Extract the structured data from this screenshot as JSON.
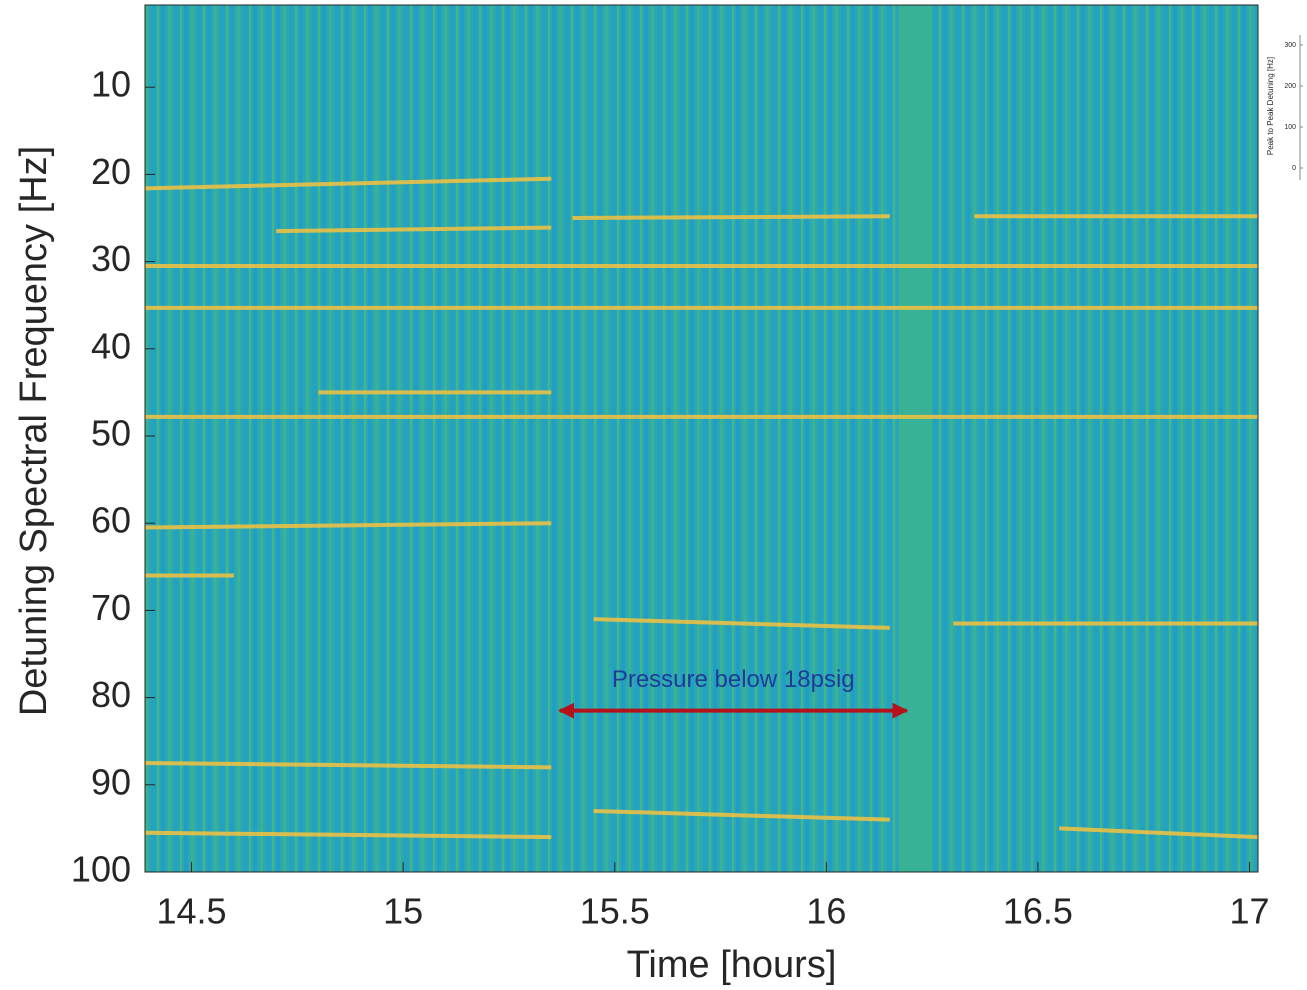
{
  "chart_data": [
    {
      "type": "heatmap",
      "xlabel": "Time [hours]",
      "ylabel": "Detuning Spectral Frequency [Hz]",
      "xlim": [
        14.39,
        17.02
      ],
      "ylim": [
        0,
        100
      ],
      "y_inverted": true,
      "xticks": [
        14.5,
        15,
        15.5,
        16,
        16.5,
        17
      ],
      "yticks": [
        10,
        20,
        30,
        40,
        50,
        60,
        70,
        80,
        90,
        100
      ],
      "colors": {
        "low": "#1f9fc6",
        "mid": "#3ab294",
        "high": "#f6c23e"
      },
      "features": [
        {
          "x": [
            14.39,
            15.35
          ],
          "y": [
            21.6,
            20.5
          ]
        },
        {
          "x": [
            14.7,
            15.35
          ],
          "y": [
            26.5,
            26.1
          ]
        },
        {
          "x": [
            15.4,
            16.15
          ],
          "y": [
            25,
            24.8
          ]
        },
        {
          "x": [
            16.35,
            17.02
          ],
          "y": [
            24.8,
            24.8
          ]
        },
        {
          "x": [
            14.39,
            17.02
          ],
          "y": [
            30.5,
            30.5
          ]
        },
        {
          "x": [
            14.39,
            17.02
          ],
          "y": [
            35.3,
            35.3
          ]
        },
        {
          "x": [
            14.39,
            17.02
          ],
          "y": [
            47.8,
            47.8
          ]
        },
        {
          "x": [
            14.8,
            15.35
          ],
          "y": [
            45,
            45
          ]
        },
        {
          "x": [
            14.39,
            15.35
          ],
          "y": [
            60.5,
            60
          ]
        },
        {
          "x": [
            14.39,
            14.6
          ],
          "y": [
            66,
            66
          ]
        },
        {
          "x": [
            15.45,
            16.15
          ],
          "y": [
            71,
            72
          ]
        },
        {
          "x": [
            16.3,
            17.02
          ],
          "y": [
            71.5,
            71.5
          ]
        },
        {
          "x": [
            14.39,
            15.35
          ],
          "y": [
            87.5,
            88
          ]
        },
        {
          "x": [
            15.45,
            16.15
          ],
          "y": [
            93,
            94
          ]
        },
        {
          "x": [
            14.39,
            15.35
          ],
          "y": [
            95.5,
            96
          ]
        },
        {
          "x": [
            16.55,
            17.02
          ],
          "y": [
            95,
            96
          ]
        }
      ],
      "bands": [
        {
          "x": [
            16.17,
            16.25
          ]
        }
      ],
      "annotations": [
        {
          "text": "Pressure below 18psig",
          "x": [
            15.37,
            16.19
          ],
          "y": 81.5,
          "color": "#b5121b",
          "text_color": "#1f3b9a"
        }
      ]
    },
    {
      "type": "inset",
      "ylabel": "Peak to Peak Detuning [Hz]",
      "ylim": [
        0,
        300
      ],
      "yticks": [
        0,
        100,
        200,
        300
      ]
    }
  ]
}
